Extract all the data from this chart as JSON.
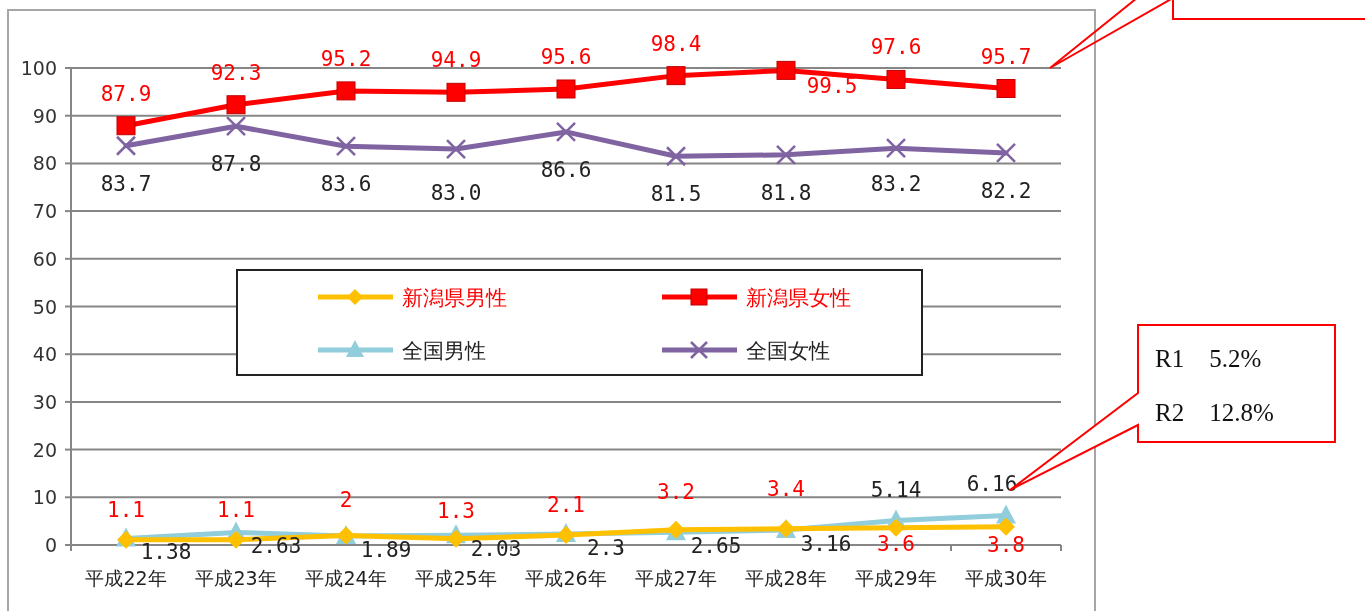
{
  "chart_data": {
    "type": "line",
    "categories": [
      "平成22年",
      "平成23年",
      "平成24年",
      "平成25年",
      "平成26年",
      "平成27年",
      "平成28年",
      "平成29年",
      "平成30年"
    ],
    "ylim": [
      0,
      100
    ],
    "yticks": [
      0,
      10,
      20,
      30,
      40,
      50,
      60,
      70,
      80,
      90,
      100
    ],
    "grid": "y",
    "legend": "center",
    "line_style": "solid",
    "series": [
      {
        "name": "新潟県男性",
        "color": "#ffc000",
        "marker": "diamond",
        "values": [
          1.1,
          1.1,
          2,
          1.3,
          2.1,
          3.2,
          3.4,
          3.6,
          3.8
        ],
        "value_labels": [
          "1.1",
          "1.1",
          "2",
          "1.3",
          "2.1",
          "3.2",
          "3.4",
          "3.6",
          "3.8"
        ]
      },
      {
        "name": "新潟県女性",
        "color": "#ff0000",
        "marker": "square",
        "values": [
          87.9,
          92.3,
          95.2,
          94.9,
          95.6,
          98.4,
          99.5,
          97.6,
          95.7
        ],
        "value_labels": [
          "87.9",
          "92.3",
          "95.2",
          "94.9",
          "95.6",
          "98.4",
          "99.5",
          "97.6",
          "95.7"
        ]
      },
      {
        "name": "全国男性",
        "color": "#92cddc",
        "marker": "triangle",
        "values": [
          1.38,
          2.63,
          1.89,
          2.03,
          2.3,
          2.65,
          3.16,
          5.14,
          6.16
        ],
        "value_labels": [
          "1.38",
          "2.63",
          "1.89",
          "2.03",
          "2.3",
          "2.65",
          "3.16",
          "5.14",
          "6.16"
        ]
      },
      {
        "name": "全国女性",
        "color": "#8064a2",
        "marker": "cross",
        "values": [
          83.7,
          87.8,
          83.6,
          83.0,
          86.6,
          81.5,
          81.8,
          83.2,
          82.2
        ],
        "value_labels": [
          "83.7",
          "87.8",
          "83.6",
          "83.0",
          "86.6",
          "81.5",
          "81.8",
          "83.2",
          "82.2"
        ]
      }
    ],
    "annotations": [
      "R1　5.2%",
      "R2　12.8%"
    ]
  }
}
